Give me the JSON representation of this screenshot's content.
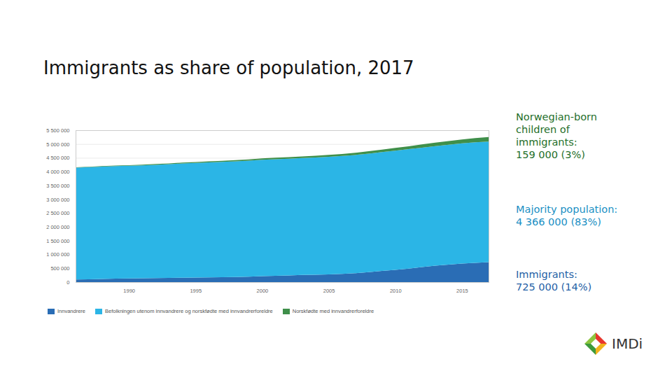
{
  "chart_data": {
    "type": "area",
    "title": "Immigrants as share of population, 2017",
    "stacked": true,
    "grid": true,
    "legend": "bottom",
    "x": [
      1986,
      1987,
      1988,
      1989,
      1990,
      1991,
      1992,
      1993,
      1994,
      1995,
      1996,
      1997,
      1998,
      1999,
      2000,
      2001,
      2002,
      2003,
      2004,
      2005,
      2006,
      2007,
      2008,
      2009,
      2010,
      2011,
      2012,
      2013,
      2014,
      2015,
      2016,
      2017
    ],
    "xlim": [
      1986,
      2017
    ],
    "xticks": [
      1990,
      1995,
      2000,
      2005,
      2010,
      2015
    ],
    "ylim": [
      0,
      5500000
    ],
    "yticks": [
      0,
      {
        "value": 500000,
        "label": "500 000"
      },
      {
        "value": 1000000,
        "label": "1 000 000"
      },
      {
        "value": 1500000,
        "label": "1 500 000"
      },
      {
        "value": 2000000,
        "label": "2 000 000"
      },
      {
        "value": 2500000,
        "label": "2 500 000"
      },
      {
        "value": 3000000,
        "label": "3 000 000"
      },
      {
        "value": 3500000,
        "label": "3 500 000"
      },
      {
        "value": 4000000,
        "label": "4 000 000"
      },
      {
        "value": 4500000,
        "label": "4 500 000"
      },
      {
        "value": 5000000,
        "label": "5 000 000"
      },
      {
        "value": 5500000,
        "label": "5 500 000"
      }
    ],
    "series": [
      {
        "name": "Innvandrere",
        "color": "#2a6db5",
        "values": [
          95000,
          103000,
          115000,
          126000,
          132000,
          137000,
          143000,
          150000,
          158000,
          164000,
          169000,
          175000,
          184000,
          197000,
          215000,
          228000,
          243000,
          257000,
          267000,
          279000,
          297000,
          321000,
          361000,
          406000,
          446000,
          490000,
          547000,
          594000,
          634000,
          669000,
          698000,
          725000
        ]
      },
      {
        "name": "Befolkningen utenom innvandrere og norskfødte med innvandrerforeldre",
        "color": "#2bb5e6",
        "values": [
          4050000,
          4057000,
          4066000,
          4076000,
          4080000,
          4090000,
          4105000,
          4121000,
          4136000,
          4150000,
          4164000,
          4178000,
          4191000,
          4202000,
          4214000,
          4223000,
          4225000,
          4235000,
          4246000,
          4259000,
          4271000,
          4282000,
          4292000,
          4302000,
          4313000,
          4323000,
          4322000,
          4332000,
          4340000,
          4354000,
          4365000,
          4366000
        ]
      },
      {
        "name": "Norskfødte med innvandrerforeldre",
        "color": "#3f8f4a",
        "values": [
          14000,
          15000,
          17000,
          19000,
          21000,
          23000,
          26000,
          28000,
          31000,
          34000,
          37000,
          40000,
          43000,
          46000,
          49000,
          52000,
          56000,
          60000,
          64000,
          68000,
          72000,
          78000,
          84000,
          91000,
          99000,
          107000,
          117000,
          125000,
          135000,
          143000,
          151000,
          159000
        ]
      }
    ],
    "annotations": [
      "Norwegian-born\nchildren of\nimmigrants:\n159 000 (3%)",
      "Majority population:\n4 366 000 (83%)",
      "Immigrants:\n725 000 (14%)"
    ],
    "source": "IMDi"
  }
}
